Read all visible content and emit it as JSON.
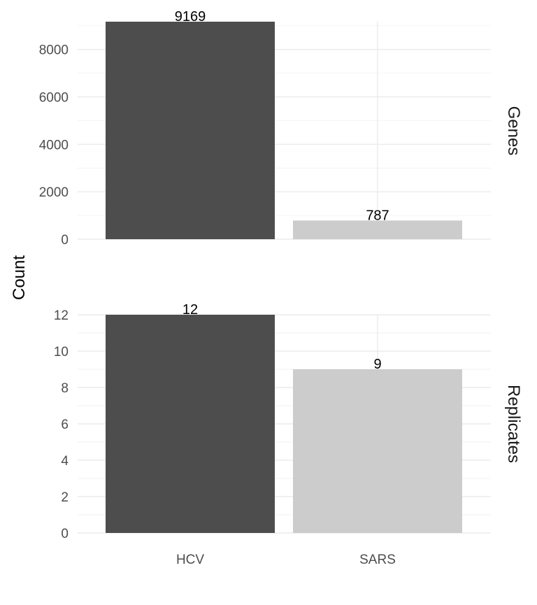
{
  "chart_data": {
    "type": "bar",
    "categories": [
      "HCV",
      "SARS"
    ],
    "colors": {
      "HCV": "#4d4d4d",
      "SARS": "#cccccc"
    },
    "ylabel": "Count",
    "xlabel": "",
    "grid": true,
    "panels": [
      {
        "strip": "Genes",
        "values": [
          9169,
          787
        ],
        "labels": [
          "9169",
          "787"
        ],
        "ylim": [
          0,
          9169
        ],
        "yticks": [
          0,
          2000,
          4000,
          6000,
          8000
        ],
        "ytick_labels": [
          "0",
          "2000",
          "4000",
          "6000",
          "8000"
        ]
      },
      {
        "strip": "Replicates",
        "values": [
          12,
          9
        ],
        "labels": [
          "12",
          "9"
        ],
        "ylim": [
          0,
          12
        ],
        "yticks": [
          0,
          2,
          4,
          6,
          8,
          10,
          12
        ],
        "ytick_labels": [
          "0",
          "2",
          "4",
          "6",
          "8",
          "10",
          "12"
        ]
      }
    ]
  }
}
